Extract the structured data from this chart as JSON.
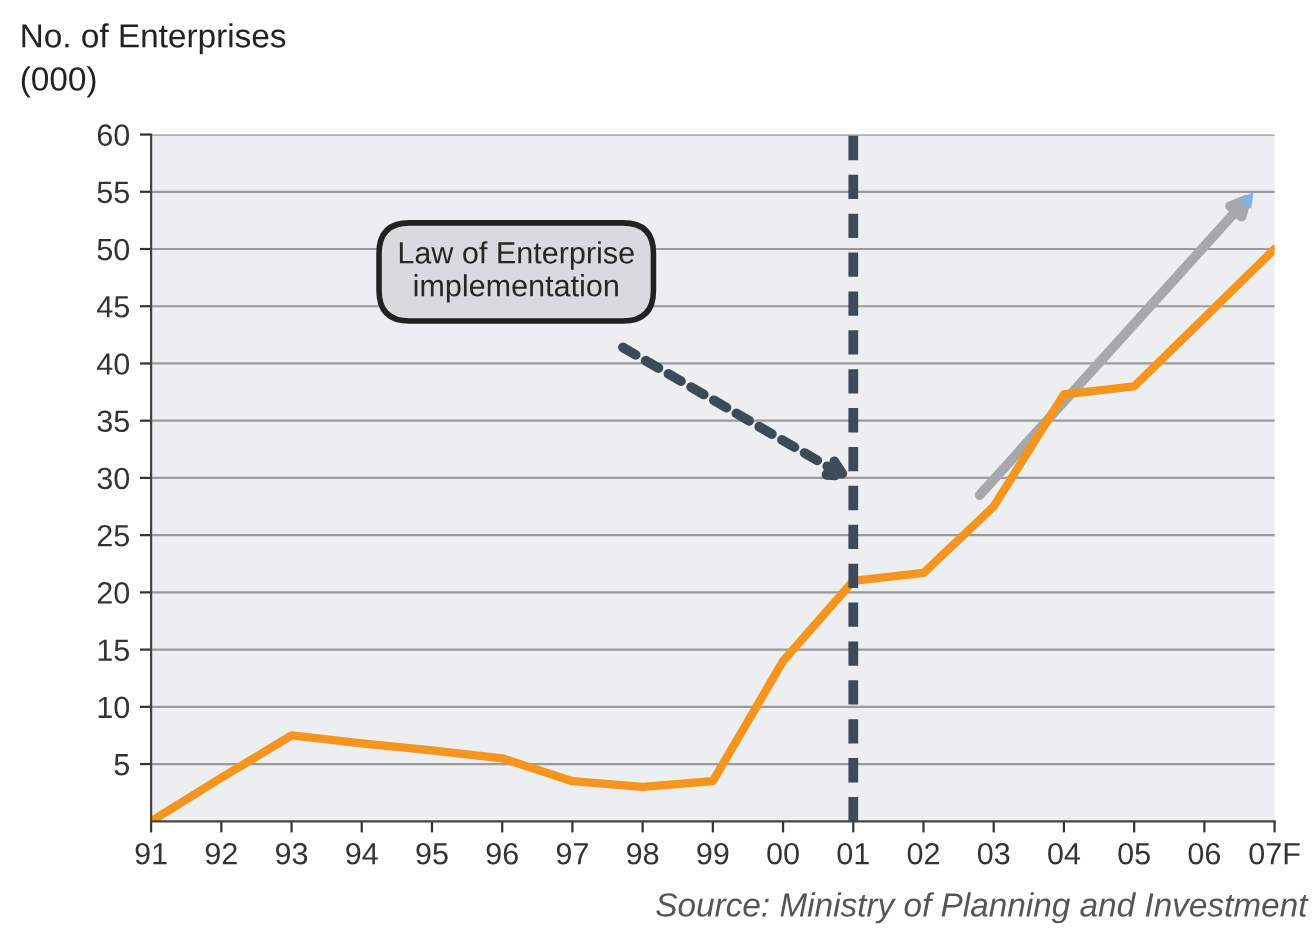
{
  "chart_data": {
    "type": "line",
    "ylabel": "No. of Enterprises\n(000)",
    "categories": [
      "91",
      "92",
      "93",
      "94",
      "95",
      "96",
      "97",
      "98",
      "99",
      "00",
      "01",
      "02",
      "03",
      "04",
      "05",
      "06",
      "07F"
    ],
    "series": [
      {
        "color": "#f7941d",
        "values": [
          0,
          3.8,
          7.5,
          6.8,
          6.2,
          5.5,
          3.5,
          3,
          3.5,
          14,
          21,
          21.7,
          27.5,
          37.3,
          38,
          44,
          50
        ]
      }
    ],
    "ylim": [
      0,
      60
    ],
    "yticks": [
      5,
      10,
      15,
      20,
      25,
      30,
      35,
      40,
      45,
      50,
      55,
      60
    ],
    "grid": "y",
    "marker": "none",
    "line_style": "solid",
    "ref_lines": [
      {
        "axis": "x",
        "value": "01",
        "color": "#3d4a57",
        "line_style": "dashed"
      }
    ],
    "annotations": [
      "Law of Enterprise\nimplementation",
      "Source: Ministry of Planning and Investment"
    ]
  }
}
